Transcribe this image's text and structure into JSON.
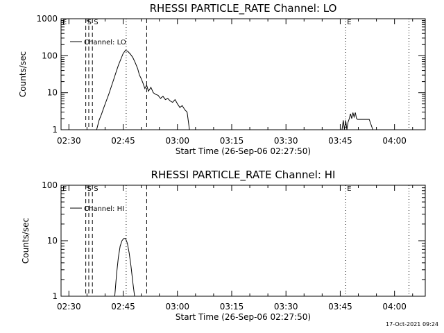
{
  "footer_timestamp": "17-Oct-2021 09:24",
  "chart_data": [
    {
      "type": "line",
      "title": "RHESSI PARTICLE_RATE Channel: LO",
      "xlabel": "Start Time (26-Sep-06 02:27:50)",
      "ylabel": "Counts/sec",
      "yscale": "log",
      "ylim": [
        1,
        1000
      ],
      "xlim": [
        "02:27:50",
        "04:08:30"
      ],
      "xticks": [
        "02:30",
        "02:45",
        "03:00",
        "03:15",
        "03:30",
        "03:45",
        "04:00"
      ],
      "yticks": [
        "1",
        "10",
        "100",
        "1000"
      ],
      "legend": "Channel: LO",
      "legend_placement": "top-left",
      "markers": [
        {
          "time": "02:27:50",
          "style": "solid",
          "label": "E"
        },
        {
          "time": "02:34:40",
          "style": "dashed",
          "label": "S"
        },
        {
          "time": "02:35:30",
          "style": "dashed",
          "label": ""
        },
        {
          "time": "02:36:30",
          "style": "dashed",
          "label": "S"
        },
        {
          "time": "02:45:50",
          "style": "dotted",
          "label": ""
        },
        {
          "time": "02:51:30",
          "style": "dashed",
          "label": ""
        },
        {
          "time": "03:46:30",
          "style": "dotted",
          "label": "E"
        },
        {
          "time": "04:04:00",
          "style": "dotted",
          "label": ""
        }
      ],
      "series": [
        {
          "x": [
            "02:37:40",
            "02:38:20",
            "02:39:00",
            "02:39:40",
            "02:40:20",
            "02:41:00",
            "02:41:40",
            "02:42:20",
            "02:43:00",
            "02:43:40",
            "02:44:20",
            "02:45:00",
            "02:45:40",
            "02:46:20",
            "02:47:00",
            "02:47:40",
            "02:48:20",
            "02:49:00",
            "02:49:30",
            "02:50:00",
            "02:50:30",
            "02:51:00",
            "02:51:30",
            "02:52:00",
            "02:52:40",
            "02:53:20",
            "02:54:00",
            "02:54:40",
            "02:55:20",
            "02:56:00",
            "02:56:40",
            "02:57:20",
            "02:58:00",
            "02:58:40",
            "02:59:20",
            "03:00:00",
            "03:00:40",
            "03:01:20",
            "03:02:00",
            "03:02:40",
            "03:03:20"
          ],
          "y": [
            1,
            1.8,
            2.6,
            4,
            6,
            9,
            14,
            22,
            35,
            55,
            80,
            115,
            140,
            130,
            110,
            90,
            65,
            45,
            30,
            24,
            18,
            13,
            16,
            11,
            14,
            10,
            9,
            8.5,
            7,
            8,
            6.5,
            7,
            6,
            5.5,
            6.5,
            5,
            4,
            4.5,
            3.5,
            3,
            1
          ]
        },
        {
          "x": [
            "03:45:30",
            "03:45:50",
            "03:46:10",
            "03:46:30",
            "03:46:50",
            "03:47:10",
            "03:47:30",
            "03:47:50",
            "03:48:10",
            "03:48:30",
            "03:48:50",
            "03:49:10",
            "03:49:30",
            "03:49:50",
            "03:50:10",
            "03:51:00",
            "03:52:00",
            "03:53:00",
            "03:54:00"
          ],
          "y": [
            1,
            1.8,
            1,
            1.8,
            1,
            1.6,
            2,
            2.7,
            2,
            2.9,
            2.2,
            2.9,
            2,
            1.9,
            1.9,
            1.9,
            1.9,
            1.9,
            1
          ]
        }
      ]
    },
    {
      "type": "line",
      "title": "RHESSI PARTICLE_RATE Channel: HI",
      "xlabel": "Start Time (26-Sep-06 02:27:50)",
      "ylabel": "Counts/sec",
      "yscale": "log",
      "ylim": [
        1,
        100
      ],
      "xlim": [
        "02:27:50",
        "04:08:30"
      ],
      "xticks": [
        "02:30",
        "02:45",
        "03:00",
        "03:15",
        "03:30",
        "03:45",
        "04:00"
      ],
      "yticks": [
        "1",
        "10",
        "100"
      ],
      "legend": "Channel: HI",
      "legend_placement": "top-left",
      "markers": [
        {
          "time": "02:27:50",
          "style": "solid",
          "label": "E"
        },
        {
          "time": "02:34:40",
          "style": "dashed",
          "label": "S"
        },
        {
          "time": "02:35:30",
          "style": "dashed",
          "label": ""
        },
        {
          "time": "02:36:30",
          "style": "dashed",
          "label": "S"
        },
        {
          "time": "02:45:50",
          "style": "dotted",
          "label": ""
        },
        {
          "time": "02:51:30",
          "style": "dashed",
          "label": ""
        },
        {
          "time": "03:46:30",
          "style": "dotted",
          "label": "E"
        },
        {
          "time": "04:04:00",
          "style": "dotted",
          "label": ""
        }
      ],
      "series": [
        {
          "x": [
            "02:42:40",
            "02:43:10",
            "02:43:40",
            "02:44:10",
            "02:44:40",
            "02:45:10",
            "02:45:40",
            "02:46:10",
            "02:46:40",
            "02:47:10",
            "02:47:40",
            "02:48:10"
          ],
          "y": [
            1,
            2.5,
            5,
            8,
            10,
            11,
            11,
            9,
            6,
            3.5,
            1.8,
            1
          ]
        }
      ]
    }
  ]
}
